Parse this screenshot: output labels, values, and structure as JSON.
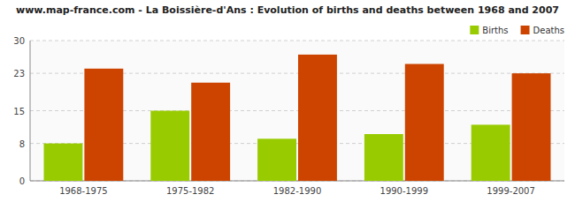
{
  "chart_data": {
    "type": "bar",
    "title": "www.map-france.com - La Boissière-d'Ans : Evolution of births and deaths between 1968 and 2007",
    "categories": [
      "1968-1975",
      "1975-1982",
      "1982-1990",
      "1990-1999",
      "1999-2007"
    ],
    "series": [
      {
        "name": "Births",
        "color": "#99cc00",
        "values": [
          8,
          15,
          9,
          10,
          12
        ]
      },
      {
        "name": "Deaths",
        "color": "#cc4400",
        "values": [
          24,
          21,
          27,
          25,
          23
        ]
      }
    ],
    "ylim": [
      0,
      30
    ],
    "yticks": [
      0,
      8,
      15,
      23,
      30
    ],
    "grid": true,
    "legend": "upper right"
  }
}
